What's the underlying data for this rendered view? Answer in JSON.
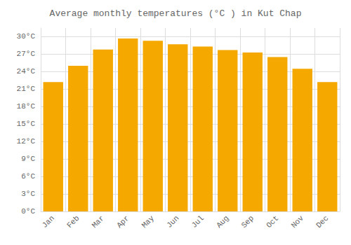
{
  "chart_data": {
    "type": "bar",
    "title": "Average monthly temperatures (°C ) in Kut Chap",
    "categories": [
      "Jan",
      "Feb",
      "Mar",
      "Apr",
      "May",
      "Jun",
      "Jul",
      "Aug",
      "Sep",
      "Oct",
      "Nov",
      "Dec"
    ],
    "values": [
      22.2,
      25.0,
      27.8,
      29.7,
      29.3,
      28.7,
      28.3,
      27.7,
      27.3,
      26.5,
      24.5,
      22.2
    ],
    "color": "#F5A800",
    "ylim": [
      0,
      31.5
    ],
    "yticks": [
      {
        "value": 0,
        "label": "0°C"
      },
      {
        "value": 3,
        "label": "3°C"
      },
      {
        "value": 6,
        "label": "6°C"
      },
      {
        "value": 9,
        "label": "9°C"
      },
      {
        "value": 12,
        "label": "12°C"
      },
      {
        "value": 15,
        "label": "15°C"
      },
      {
        "value": 18,
        "label": "18°C"
      },
      {
        "value": 21,
        "label": "21°C"
      },
      {
        "value": 24,
        "label": "24°C"
      },
      {
        "value": 27,
        "label": "27°C"
      },
      {
        "value": 30,
        "label": "30°C"
      }
    ],
    "grid": true
  }
}
